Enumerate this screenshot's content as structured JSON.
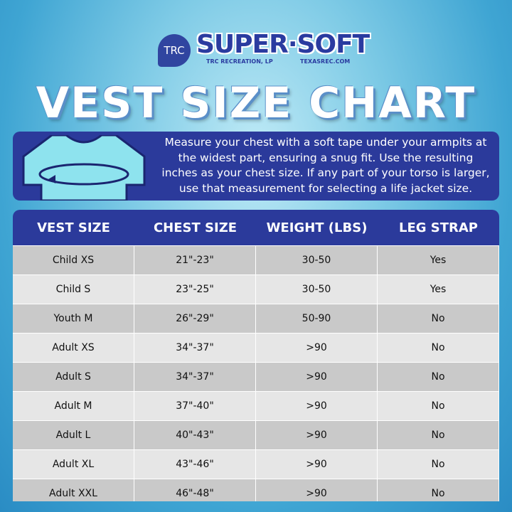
{
  "logo": {
    "badge": "TRC",
    "brand": "SUPER·SOFT",
    "company": "TRC RECREATION, LP",
    "website": "TEXASREC.COM"
  },
  "title": "VEST SIZE CHART",
  "instructions": [
    "Measure your chest with a soft tape under your armpits at",
    "the widest part, ensuring a snug fit. Use the resulting",
    "inches as your chest size. If any part of your torso is larger,",
    "use that measurement for selecting a life jacket size."
  ],
  "table": {
    "headers": [
      "VEST SIZE",
      "CHEST SIZE",
      "WEIGHT (LBS)",
      "LEG STRAP"
    ],
    "rows": [
      [
        "Child XS",
        "21\"-23\"",
        "30-50",
        "Yes"
      ],
      [
        "Child S",
        "23\"-25\"",
        "30-50",
        "Yes"
      ],
      [
        "Youth M",
        "26\"-29\"",
        "50-90",
        "No"
      ],
      [
        "Adult XS",
        "34\"-37\"",
        ">90",
        "No"
      ],
      [
        "Adult S",
        "34\"-37\"",
        ">90",
        "No"
      ],
      [
        "Adult M",
        "37\"-40\"",
        ">90",
        "No"
      ],
      [
        "Adult L",
        "40\"-43\"",
        ">90",
        "No"
      ],
      [
        "Adult XL",
        "43\"-46\"",
        ">90",
        "No"
      ],
      [
        "Adult XXL",
        "46\"-48\"",
        ">90",
        "No"
      ]
    ]
  }
}
